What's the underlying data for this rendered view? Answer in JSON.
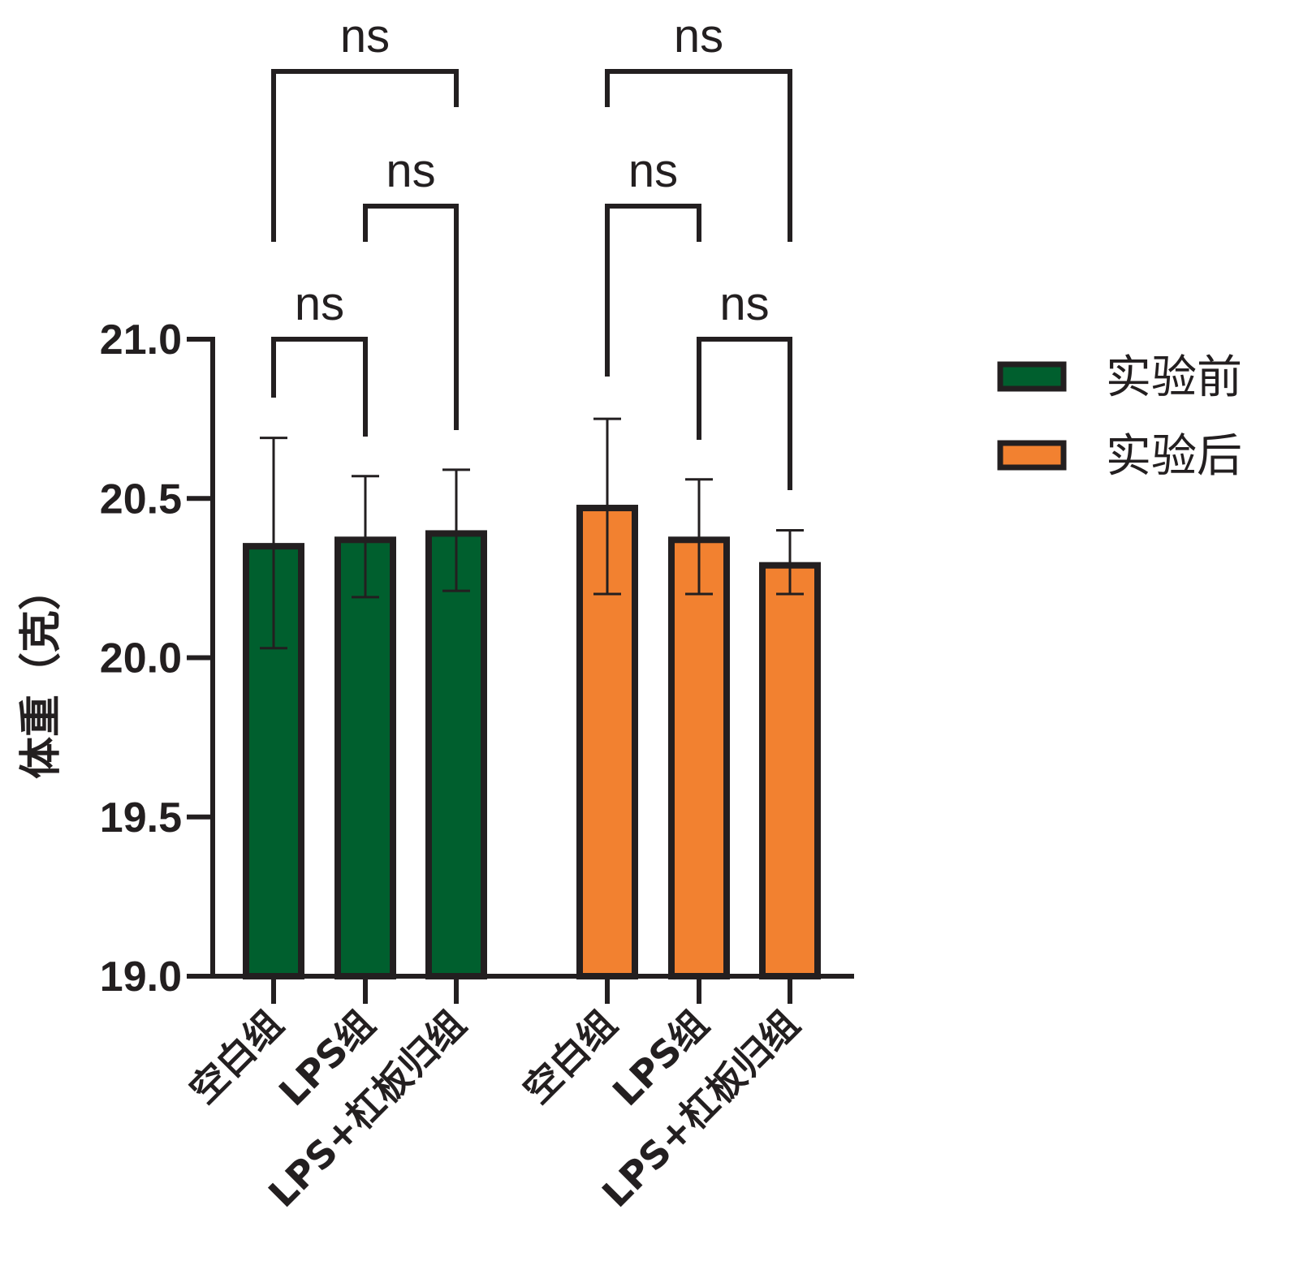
{
  "chart_data": {
    "type": "bar",
    "ylabel": "体重（克）",
    "ylim": [
      19.0,
      21.0
    ],
    "yticks": [
      "19.0",
      "19.5",
      "20.0",
      "20.5",
      "21.0"
    ],
    "categories": [
      "空白组",
      "LPS组",
      "LPS+杠板归组"
    ],
    "series": [
      {
        "name": "实验前",
        "color": "#005f2e",
        "values": [
          20.35,
          20.37,
          20.39
        ],
        "error_low": [
          20.03,
          20.19,
          20.21
        ],
        "error_high": [
          20.69,
          20.57,
          20.59
        ]
      },
      {
        "name": "实验后",
        "color": "#f28130",
        "values": [
          20.47,
          20.37,
          20.29
        ],
        "error_low": [
          20.2,
          20.2,
          20.2
        ],
        "error_high": [
          20.75,
          20.56,
          20.4
        ]
      }
    ],
    "significance": [
      {
        "label": "ns",
        "series": 0,
        "from": 0,
        "to": 1
      },
      {
        "label": "ns",
        "series": 0,
        "from": 1,
        "to": 2
      },
      {
        "label": "ns",
        "series": 0,
        "from": 0,
        "to": 2
      },
      {
        "label": "ns",
        "series": 1,
        "from": 1,
        "to": 2
      },
      {
        "label": "ns",
        "series": 1,
        "from": 0,
        "to": 1
      },
      {
        "label": "ns",
        "series": 1,
        "from": 0,
        "to": 2
      }
    ],
    "legend_position": "right",
    "grid": false
  }
}
